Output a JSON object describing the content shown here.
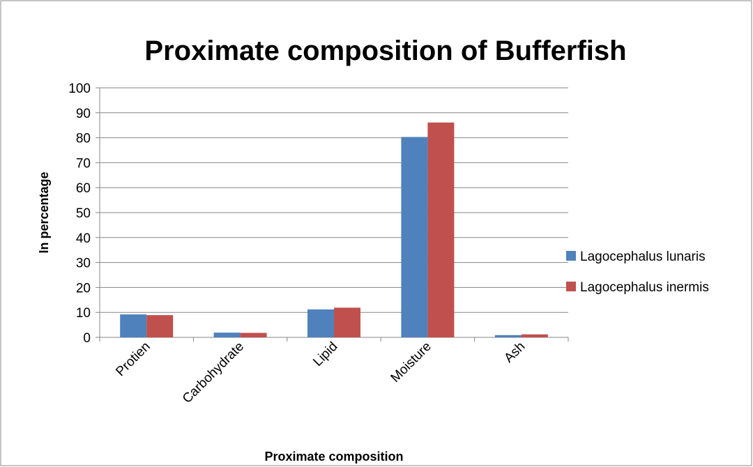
{
  "chart_data": {
    "type": "bar",
    "title": "Proximate composition of Bufferfish",
    "x_label": "Proximate composition",
    "y_label": "In percentage",
    "categories": [
      "Protien",
      "Carbohydrate",
      "Lipid",
      "Moisture",
      "Ash"
    ],
    "series": [
      {
        "name": "Lagocephalus lunaris",
        "color": "#4f81bd",
        "values": [
          9.2,
          1.9,
          11.2,
          80.3,
          0.9
        ]
      },
      {
        "name": "Lagocephalus inermis",
        "color": "#c0504d",
        "values": [
          8.9,
          1.8,
          11.9,
          86.1,
          1.2
        ]
      }
    ],
    "ylim": [
      0,
      100
    ],
    "yticks": [
      0,
      10,
      20,
      30,
      40,
      50,
      60,
      70,
      80,
      90,
      100
    ],
    "grid": true,
    "legend": "right"
  }
}
